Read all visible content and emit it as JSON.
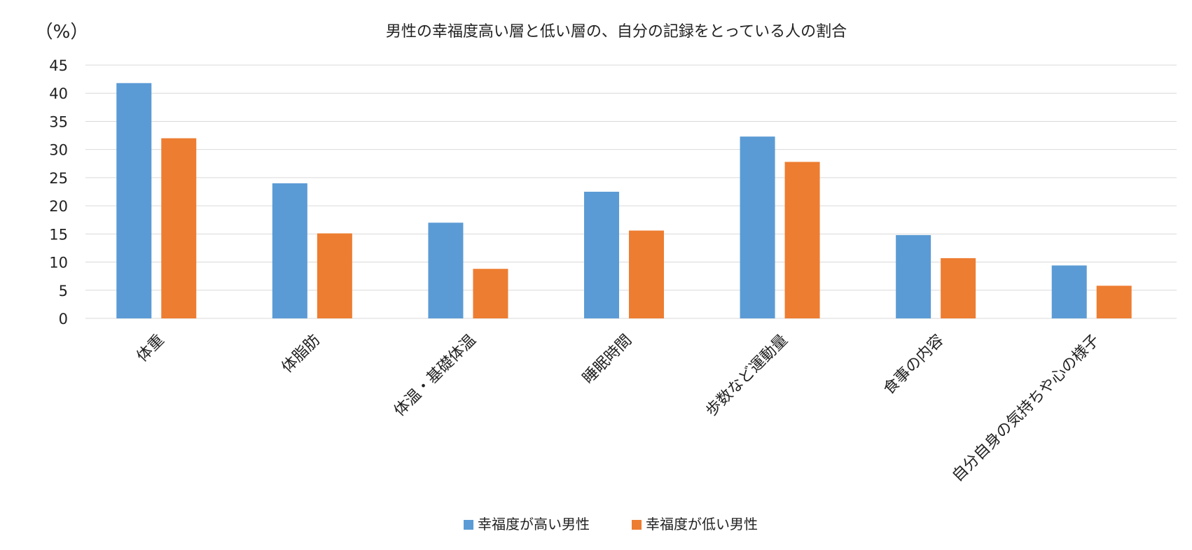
{
  "chart_data": {
    "type": "bar",
    "title": "男性の幸福度高い層と低い層の、自分の記録をとっている人の割合",
    "ylabel": "（%）",
    "xlabel": "",
    "ylim": [
      0,
      45
    ],
    "yticks": [
      0,
      5,
      10,
      15,
      20,
      25,
      30,
      35,
      40,
      45
    ],
    "grid": true,
    "legend_position": "bottom",
    "categories": [
      "体重",
      "体脂肪",
      "体温・基礎体温",
      "睡眠時間",
      "歩数など運動量",
      "食事の内容",
      "自分自身の気持ちや心の様子"
    ],
    "series": [
      {
        "name": "幸福度が高い男性",
        "color": "#5B9BD5",
        "values": [
          41.8,
          24.0,
          17.0,
          22.5,
          32.3,
          14.8,
          9.4
        ]
      },
      {
        "name": "幸福度が低い男性",
        "color": "#ED7D31",
        "values": [
          32.0,
          15.1,
          8.8,
          15.6,
          27.8,
          10.7,
          5.8
        ]
      }
    ]
  }
}
